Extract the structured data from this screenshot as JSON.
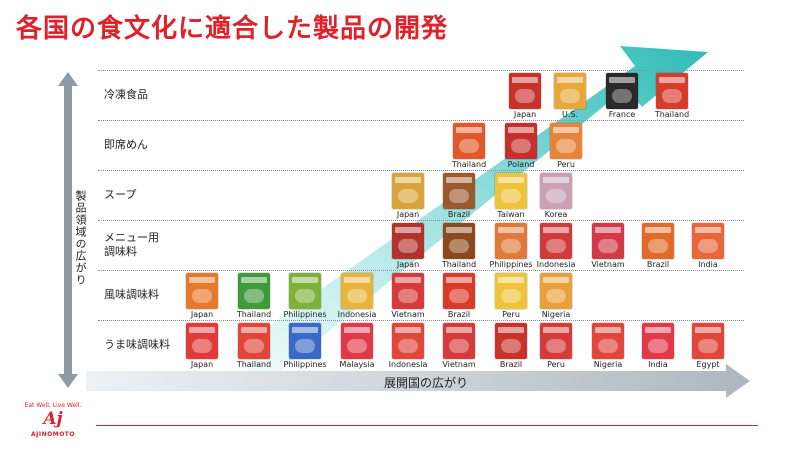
{
  "title": "各国の食文化に適合した製品の開発",
  "y_axis_label": "製品領域の広がり",
  "x_axis_label": "展開国の広がり",
  "rows": [
    {
      "label": "冷凍食品",
      "items": [
        {
          "country": "Japan",
          "color": "#c8322a"
        },
        {
          "country": "U.S.",
          "color": "#e9a63a"
        },
        {
          "country": "France",
          "color": "#2a2a2a"
        },
        {
          "country": "Thailand",
          "color": "#d63b2b"
        }
      ]
    },
    {
      "label": "即席めん",
      "items": [
        {
          "country": "Thailand",
          "color": "#e2582a"
        },
        {
          "country": "Poland",
          "color": "#c72f2f"
        },
        {
          "country": "Peru",
          "color": "#e8843a"
        }
      ]
    },
    {
      "label": "スープ",
      "items": [
        {
          "country": "Japan",
          "color": "#d9a43a"
        },
        {
          "country": "Brazil",
          "color": "#9b5a2e"
        },
        {
          "country": "Taiwan",
          "color": "#f0c43a"
        },
        {
          "country": "Korea",
          "color": "#c9a0b8"
        }
      ]
    },
    {
      "label": "メニュー用\n調味料",
      "items": [
        {
          "country": "Japan",
          "color": "#b3322b"
        },
        {
          "country": "Thailand",
          "color": "#8a4a1e"
        },
        {
          "country": "Philippines",
          "color": "#e07a3a"
        },
        {
          "country": "Indonesia",
          "color": "#cf3a3a"
        },
        {
          "country": "Vietnam",
          "color": "#d23a4a"
        },
        {
          "country": "Brazil",
          "color": "#e06a2a"
        },
        {
          "country": "India",
          "color": "#e8663a"
        }
      ]
    },
    {
      "label": "風味調味料",
      "items": [
        {
          "country": "Japan",
          "color": "#e67a2a"
        },
        {
          "country": "Thailand",
          "color": "#3f9a3a"
        },
        {
          "country": "Philippines",
          "color": "#7fb03a"
        },
        {
          "country": "Indonesia",
          "color": "#e8b43a"
        },
        {
          "country": "Vietnam",
          "color": "#d63a3a"
        },
        {
          "country": "Brazil",
          "color": "#d93a2a"
        },
        {
          "country": "Peru",
          "color": "#f0c43a"
        },
        {
          "country": "Nigeria",
          "color": "#e8a03a"
        }
      ]
    },
    {
      "label": "うま味調味料",
      "items": [
        {
          "country": "Japan",
          "color": "#e03a3a"
        },
        {
          "country": "Thailand",
          "color": "#e0463a"
        },
        {
          "country": "Philippines",
          "color": "#3a6ac8"
        },
        {
          "country": "Malaysia",
          "color": "#e03a4a"
        },
        {
          "country": "Indonesia",
          "color": "#e0463a"
        },
        {
          "country": "Vietnam",
          "color": "#d63a3a"
        },
        {
          "country": "Brazil",
          "color": "#c8322a"
        },
        {
          "country": "Peru",
          "color": "#d63a3a"
        },
        {
          "country": "Nigeria",
          "color": "#e0463a"
        },
        {
          "country": "India",
          "color": "#e03a4a"
        },
        {
          "country": "Egypt",
          "color": "#e0463a"
        }
      ]
    }
  ],
  "logo": {
    "slogan": "Eat Well, Live Well.",
    "mark": "Aj",
    "wordmark": "AJINOMOTO"
  },
  "colors": {
    "title_red": "#e0202b",
    "arrow_teal": "#36c3bf",
    "axis_gray": "#8e9aa6"
  }
}
